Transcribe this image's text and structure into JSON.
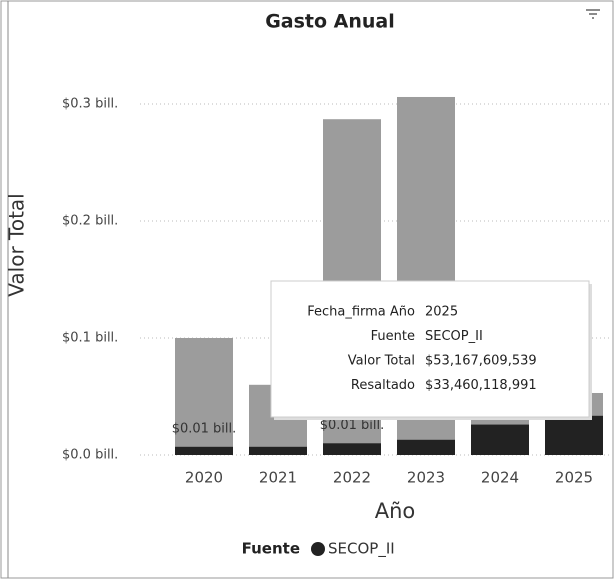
{
  "chart_data": {
    "type": "bar",
    "title": "Gasto Anual",
    "x_label": "Año",
    "y_label": "Valor Total",
    "categories": [
      "2020",
      "2021",
      "2022",
      "2023",
      "2024",
      "2025"
    ],
    "series": [
      {
        "name": "Valor Total",
        "color": "#9c9c9c",
        "values": [
          0.1,
          0.06,
          0.287,
          0.306,
          0.04,
          0.053
        ]
      },
      {
        "name": "Resaltado",
        "color": "#222222",
        "values": [
          0.007,
          0.007,
          0.01,
          0.013,
          0.026,
          0.0335
        ],
        "value_labels": [
          "$0.01 bill.",
          null,
          "$0.01 bill.",
          null,
          null,
          null
        ]
      }
    ],
    "ylim": [
      0,
      0.35
    ],
    "yticks": [
      {
        "value": 0,
        "label": "$0.0 bill."
      },
      {
        "value": 0.1,
        "label": "$0.1 bill."
      },
      {
        "value": 0.2,
        "label": "$0.2 bill."
      },
      {
        "value": 0.3,
        "label": "$0.3 bill."
      }
    ],
    "grid": true,
    "legend_title": "Fuente",
    "legend_entries": [
      "SECOP_II"
    ],
    "legend_color": "#222222",
    "tooltip": {
      "rows": [
        [
          "Fecha_firma Año",
          "2025"
        ],
        [
          "Fuente",
          "SECOP_II"
        ],
        [
          "Valor Total",
          "$53,167,609,539"
        ],
        [
          "Resaltado",
          "$33,460,118,991"
        ]
      ]
    }
  }
}
